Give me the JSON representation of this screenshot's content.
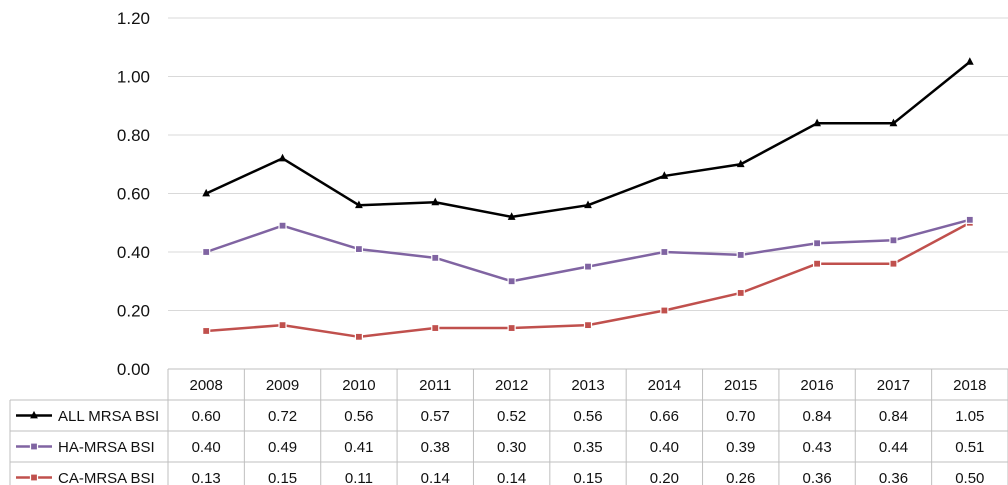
{
  "chart_data": {
    "type": "line",
    "title": "",
    "xlabel": "",
    "ylabel": "",
    "ylim": [
      0,
      1.2
    ],
    "yticks": [
      "0.00",
      "0.20",
      "0.40",
      "0.60",
      "0.80",
      "1.00",
      "1.20"
    ],
    "grid": true,
    "categories": [
      "2008",
      "2009",
      "2010",
      "2011",
      "2012",
      "2013",
      "2014",
      "2015",
      "2016",
      "2017",
      "2018"
    ],
    "series": [
      {
        "name": "ALL MRSA BSI",
        "color": "#000000",
        "marker": "triangle",
        "values": [
          0.6,
          0.72,
          0.56,
          0.57,
          0.52,
          0.56,
          0.66,
          0.7,
          0.84,
          0.84,
          1.05
        ],
        "labels": [
          "0.60",
          "0.72",
          "0.56",
          "0.57",
          "0.52",
          "0.56",
          "0.66",
          "0.70",
          "0.84",
          "0.84",
          "1.05"
        ]
      },
      {
        "name": "HA-MRSA BSI",
        "color": "#8064a2",
        "marker": "square",
        "values": [
          0.4,
          0.49,
          0.41,
          0.38,
          0.3,
          0.35,
          0.4,
          0.39,
          0.43,
          0.44,
          0.51
        ],
        "labels": [
          "0.40",
          "0.49",
          "0.41",
          "0.38",
          "0.30",
          "0.35",
          "0.40",
          "0.39",
          "0.43",
          "0.44",
          "0.51"
        ]
      },
      {
        "name": "CA-MRSA BSI",
        "color": "#c0504d",
        "marker": "square",
        "values": [
          0.13,
          0.15,
          0.11,
          0.14,
          0.14,
          0.15,
          0.2,
          0.26,
          0.36,
          0.36,
          0.5
        ],
        "labels": [
          "0.13",
          "0.15",
          "0.11",
          "0.14",
          "0.14",
          "0.15",
          "0.20",
          "0.26",
          "0.36",
          "0.36",
          "0.50"
        ]
      }
    ]
  }
}
